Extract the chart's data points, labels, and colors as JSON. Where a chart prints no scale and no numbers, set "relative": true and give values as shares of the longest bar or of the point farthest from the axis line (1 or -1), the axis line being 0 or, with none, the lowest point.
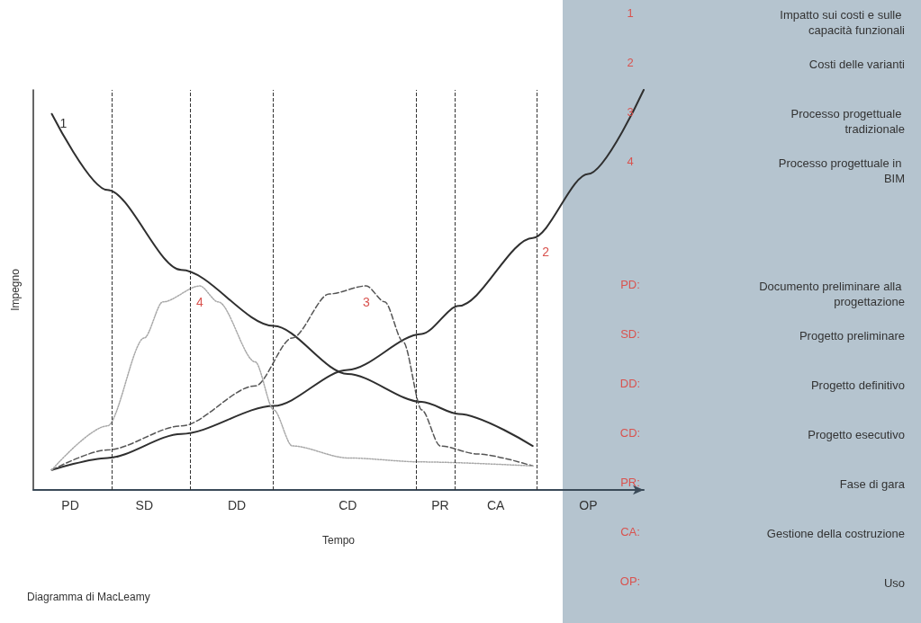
{
  "chart_data": {
    "type": "line",
    "title": "Diagramma di MacLeamy",
    "xlabel": "Tempo",
    "ylabel": "Impegno",
    "relative": true,
    "legend": false,
    "grid": "x",
    "marker": "none",
    "categories": [
      null,
      null,
      "PD",
      null,
      null,
      null,
      "SD",
      null,
      null,
      null,
      null,
      "DD",
      null,
      null,
      null,
      null,
      null,
      "CD",
      null,
      null,
      null,
      null,
      "PR",
      null,
      null,
      "CA",
      null,
      null,
      null,
      null,
      "OP",
      null,
      null,
      null
    ],
    "series": [
      {
        "name": "1",
        "color": "#2f2f2f",
        "line_style": "solid",
        "values": [
          null,
          0.94,
          null,
          null,
          0.75,
          null,
          null,
          null,
          0.55,
          null,
          null,
          null,
          null,
          0.41,
          null,
          null,
          null,
          0.29,
          null,
          null,
          null,
          0.22,
          null,
          0.19,
          null,
          null,
          null,
          0.11,
          null,
          null,
          null,
          null,
          null,
          null
        ]
      },
      {
        "name": "2",
        "color": "#2f2f2f",
        "line_style": "solid",
        "values": [
          null,
          0.05,
          null,
          null,
          0.08,
          null,
          null,
          null,
          0.14,
          null,
          null,
          null,
          null,
          0.21,
          null,
          null,
          null,
          0.3,
          null,
          null,
          null,
          0.39,
          null,
          0.46,
          null,
          null,
          null,
          0.63,
          null,
          null,
          0.79,
          null,
          null,
          1.0
        ]
      },
      {
        "name": "3",
        "color": "#555555",
        "line_style": "dashed",
        "values": [
          null,
          0.05,
          null,
          null,
          0.1,
          null,
          null,
          null,
          0.16,
          null,
          null,
          null,
          0.26,
          null,
          0.38,
          null,
          0.49,
          null,
          0.51,
          0.47,
          0.37,
          0.2,
          0.11,
          null,
          0.09,
          null,
          null,
          0.06,
          null,
          null,
          null,
          null,
          null,
          null
        ]
      },
      {
        "name": "4",
        "color": "#a8a8a8",
        "line_style": "dotted",
        "values": [
          null,
          0.05,
          null,
          null,
          0.16,
          null,
          0.38,
          0.47,
          null,
          0.51,
          0.47,
          null,
          0.32,
          0.2,
          0.11,
          null,
          null,
          0.08,
          null,
          null,
          null,
          0.07,
          null,
          null,
          null,
          null,
          null,
          0.06,
          null,
          null,
          null,
          null,
          null,
          null
        ]
      }
    ],
    "annotations": [
      "1",
      "Impatto sui costi e sulle capacità funzionali",
      "2",
      "Costi delle varianti",
      "3",
      "Processo progettuale tradizionale",
      "4",
      "Processo progettuale in BIM",
      "PD:",
      "Documento preliminare alla progettazione",
      "SD:",
      "Progetto preliminare",
      "DD:",
      "Progetto definitivo",
      "CD:",
      "Progetto esecutivo",
      "PR:",
      "Fase di gara",
      "CA:",
      "Gestione della costruzione",
      "OP:",
      "Uso"
    ]
  }
}
